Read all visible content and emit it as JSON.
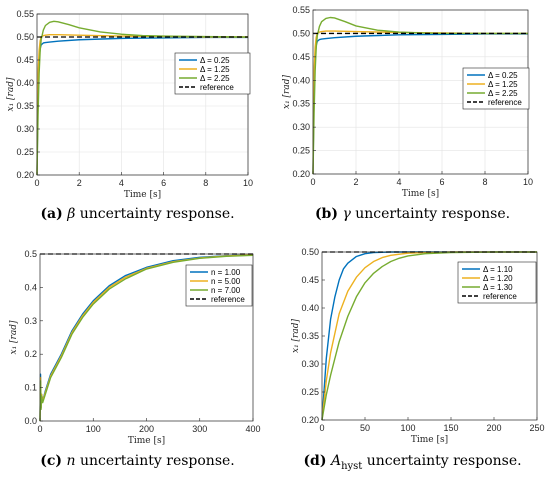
{
  "colors": {
    "blue": "#0072BD",
    "orange": "#EDB120",
    "green": "#77AC30",
    "reference": "#000000"
  },
  "chart_data": [
    {
      "type": "line",
      "caption": {
        "letter": "(a)",
        "symbol": "β",
        "text": "uncertainty response."
      },
      "xlabel": "Time [s]",
      "ylabel": "x₁ [rad]",
      "xlim": [
        0,
        10
      ],
      "ylim": [
        0.2,
        0.55
      ],
      "xticks": [
        0,
        2,
        4,
        6,
        8,
        10
      ],
      "yticks": [
        0.2,
        0.25,
        0.3,
        0.35,
        0.4,
        0.45,
        0.5,
        0.55
      ],
      "grid": true,
      "legend_position": "right",
      "series": [
        {
          "name": "Δ = 0.25",
          "color": "blue",
          "x": [
            0,
            0.03,
            0.06,
            0.1,
            0.15,
            0.2,
            0.3,
            0.4,
            0.6,
            1,
            2,
            4,
            6,
            8,
            10
          ],
          "y": [
            0.2,
            0.32,
            0.4,
            0.45,
            0.475,
            0.483,
            0.487,
            0.488,
            0.489,
            0.491,
            0.494,
            0.497,
            0.498,
            0.499,
            0.499
          ]
        },
        {
          "name": "Δ = 1.25",
          "color": "orange",
          "x": [
            0,
            0.03,
            0.06,
            0.1,
            0.15,
            0.2,
            0.3,
            0.4,
            0.6,
            1,
            2,
            4,
            6,
            8,
            10
          ],
          "y": [
            0.2,
            0.34,
            0.43,
            0.47,
            0.492,
            0.5,
            0.503,
            0.504,
            0.505,
            0.505,
            0.504,
            0.502,
            0.501,
            0.5,
            0.5
          ]
        },
        {
          "name": "Δ = 2.25",
          "color": "green",
          "x": [
            0,
            0.05,
            0.1,
            0.15,
            0.2,
            0.3,
            0.4,
            0.6,
            0.8,
            1,
            1.5,
            2,
            3,
            4,
            5,
            6,
            8,
            10
          ],
          "y": [
            0.2,
            0.33,
            0.42,
            0.47,
            0.495,
            0.515,
            0.525,
            0.532,
            0.534,
            0.533,
            0.527,
            0.52,
            0.511,
            0.506,
            0.503,
            0.502,
            0.501,
            0.5
          ]
        },
        {
          "name": "reference",
          "color": "reference",
          "dashed": true,
          "x": [
            0,
            10
          ],
          "y": [
            0.5,
            0.5
          ]
        }
      ]
    },
    {
      "type": "line",
      "caption": {
        "letter": "(b)",
        "symbol": "γ",
        "text": "uncertainty response."
      },
      "xlabel": "Time [s]",
      "ylabel": "x₁ [rad]",
      "xlim": [
        0,
        10
      ],
      "ylim": [
        0.2,
        0.55
      ],
      "xticks": [
        0,
        2,
        4,
        6,
        8,
        10
      ],
      "yticks": [
        0.2,
        0.25,
        0.3,
        0.35,
        0.4,
        0.45,
        0.5,
        0.55
      ],
      "grid": true,
      "legend_position": "right",
      "series": [
        {
          "name": "Δ = 0.25",
          "color": "blue",
          "x": [
            0,
            0.03,
            0.06,
            0.1,
            0.15,
            0.2,
            0.3,
            0.4,
            0.6,
            1,
            2,
            4,
            6,
            8,
            10
          ],
          "y": [
            0.2,
            0.32,
            0.4,
            0.45,
            0.475,
            0.483,
            0.487,
            0.488,
            0.489,
            0.491,
            0.494,
            0.497,
            0.498,
            0.499,
            0.499
          ]
        },
        {
          "name": "Δ = 1.25",
          "color": "orange",
          "x": [
            0,
            0.03,
            0.06,
            0.1,
            0.15,
            0.2,
            0.3,
            0.4,
            0.6,
            1,
            2,
            4,
            6,
            8,
            10
          ],
          "y": [
            0.2,
            0.34,
            0.43,
            0.47,
            0.492,
            0.5,
            0.503,
            0.504,
            0.505,
            0.505,
            0.504,
            0.502,
            0.501,
            0.5,
            0.5
          ]
        },
        {
          "name": "Δ = 2.25",
          "color": "green",
          "x": [
            0,
            0.05,
            0.1,
            0.15,
            0.2,
            0.3,
            0.4,
            0.6,
            0.8,
            1,
            1.5,
            2,
            3,
            4,
            5,
            6,
            8,
            10
          ],
          "y": [
            0.2,
            0.33,
            0.42,
            0.47,
            0.495,
            0.515,
            0.525,
            0.532,
            0.534,
            0.533,
            0.525,
            0.516,
            0.507,
            0.503,
            0.501,
            0.5,
            0.5,
            0.5
          ]
        },
        {
          "name": "reference",
          "color": "reference",
          "dashed": true,
          "x": [
            0,
            10
          ],
          "y": [
            0.5,
            0.5
          ]
        }
      ]
    },
    {
      "type": "line",
      "caption": {
        "letter": "(c)",
        "symbol": "n",
        "text": "uncertainty response."
      },
      "xlabel": "Time [s]",
      "ylabel": "x₁ [rad]",
      "xlim": [
        0,
        400
      ],
      "ylim": [
        0,
        0.5
      ],
      "xticks": [
        0,
        100,
        200,
        300,
        400
      ],
      "yticks": [
        0,
        0.1,
        0.2,
        0.3,
        0.4,
        0.5
      ],
      "grid": false,
      "legend_position": "right",
      "series": [
        {
          "name": "n = 1.00",
          "color": "blue",
          "x": [
            0,
            1,
            2,
            3,
            5,
            10,
            20,
            40,
            60,
            80,
            100,
            130,
            160,
            200,
            250,
            300,
            350,
            400
          ],
          "y": [
            0,
            0.14,
            0.04,
            0.08,
            0.06,
            0.09,
            0.14,
            0.2,
            0.27,
            0.32,
            0.36,
            0.405,
            0.435,
            0.46,
            0.48,
            0.49,
            0.495,
            0.497
          ]
        },
        {
          "name": "n = 5.00",
          "color": "orange",
          "x": [
            0,
            1,
            2,
            3,
            5,
            10,
            20,
            40,
            60,
            80,
            100,
            130,
            160,
            200,
            250,
            300,
            350,
            400
          ],
          "y": [
            0,
            0.13,
            0.04,
            0.08,
            0.06,
            0.085,
            0.135,
            0.195,
            0.265,
            0.315,
            0.355,
            0.4,
            0.43,
            0.457,
            0.477,
            0.488,
            0.494,
            0.497
          ]
        },
        {
          "name": "n = 7.00",
          "color": "green",
          "x": [
            0,
            1,
            2,
            3,
            5,
            10,
            20,
            40,
            60,
            80,
            100,
            130,
            160,
            200,
            250,
            300,
            350,
            400
          ],
          "y": [
            0,
            0.12,
            0.035,
            0.075,
            0.055,
            0.08,
            0.13,
            0.19,
            0.26,
            0.31,
            0.35,
            0.395,
            0.425,
            0.455,
            0.475,
            0.487,
            0.493,
            0.496
          ]
        },
        {
          "name": "reference",
          "color": "reference",
          "dashed": true,
          "x": [
            0,
            400
          ],
          "y": [
            0.5,
            0.5
          ]
        }
      ]
    },
    {
      "type": "line",
      "caption": {
        "letter": "(d)",
        "symbol": "A",
        "subscript": "hyst",
        "text": "uncertainty response."
      },
      "xlabel": "Time [s]",
      "ylabel": "x₁ [rad]",
      "xlim": [
        0,
        250
      ],
      "ylim": [
        0.2,
        0.5
      ],
      "xticks": [
        0,
        50,
        100,
        150,
        200,
        250
      ],
      "yticks": [
        0.2,
        0.25,
        0.3,
        0.35,
        0.4,
        0.45,
        0.5
      ],
      "grid": false,
      "legend_position": "right",
      "series": [
        {
          "name": "Δ = 1.10",
          "color": "blue",
          "x": [
            0,
            5,
            10,
            15,
            20,
            25,
            30,
            40,
            50,
            60,
            80,
            100,
            150,
            200,
            250
          ],
          "y": [
            0.2,
            0.31,
            0.38,
            0.42,
            0.45,
            0.47,
            0.48,
            0.492,
            0.497,
            0.499,
            0.5,
            0.5,
            0.5,
            0.5,
            0.5
          ]
        },
        {
          "name": "Δ = 1.20",
          "color": "orange",
          "x": [
            0,
            5,
            10,
            20,
            30,
            40,
            50,
            60,
            70,
            80,
            100,
            120,
            150,
            200,
            250
          ],
          "y": [
            0.2,
            0.27,
            0.32,
            0.39,
            0.43,
            0.455,
            0.472,
            0.483,
            0.49,
            0.494,
            0.498,
            0.499,
            0.5,
            0.5,
            0.5
          ]
        },
        {
          "name": "Δ = 1.30",
          "color": "green",
          "x": [
            0,
            5,
            10,
            20,
            30,
            40,
            50,
            60,
            70,
            80,
            90,
            100,
            120,
            150,
            200,
            250
          ],
          "y": [
            0.2,
            0.245,
            0.28,
            0.34,
            0.385,
            0.42,
            0.445,
            0.462,
            0.474,
            0.483,
            0.489,
            0.493,
            0.497,
            0.499,
            0.5,
            0.5
          ]
        },
        {
          "name": "reference",
          "color": "reference",
          "dashed": true,
          "x": [
            0,
            250
          ],
          "y": [
            0.5,
            0.5
          ]
        }
      ]
    }
  ]
}
